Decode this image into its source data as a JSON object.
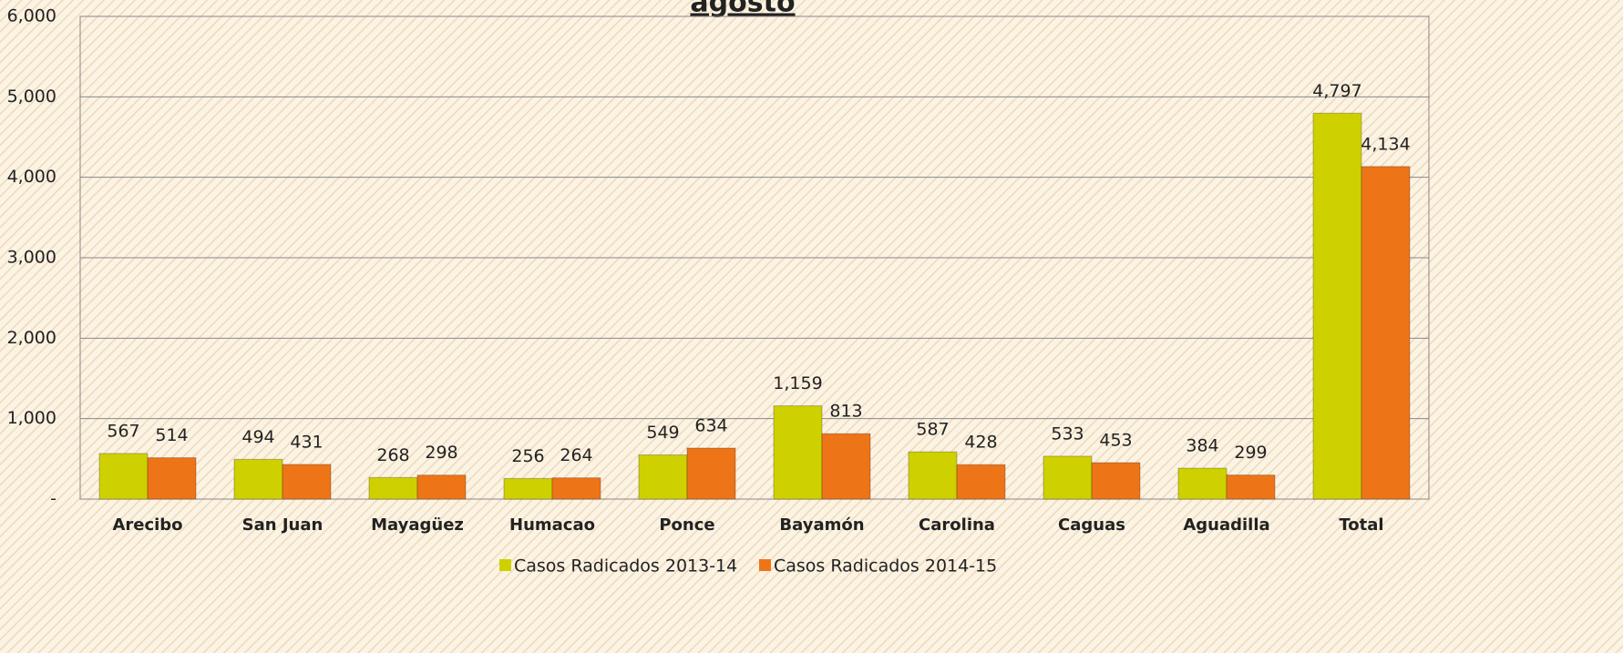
{
  "chart_data": {
    "type": "bar",
    "title": "agosto",
    "categories": [
      "Arecibo",
      "San Juan",
      "Mayagüez",
      "Humacao",
      "Ponce",
      "Bayamón",
      "Carolina",
      "Caguas",
      "Aguadilla",
      "Total"
    ],
    "series": [
      {
        "name": "Casos Radicados 2013-14",
        "color": "#cfd000",
        "values": [
          567,
          494,
          268,
          256,
          549,
          1159,
          587,
          533,
          384,
          4797
        ],
        "value_labels": [
          "567",
          "494",
          "268",
          "256",
          "549",
          "1,159",
          "587",
          "533",
          "384",
          "4,797"
        ]
      },
      {
        "name": "Casos Radicados 2014-15",
        "color": "#ee7418",
        "values": [
          514,
          431,
          298,
          264,
          634,
          813,
          428,
          453,
          299,
          4134
        ],
        "value_labels": [
          "514",
          "431",
          "298",
          "264",
          "634",
          "813",
          "428",
          "453",
          "299",
          "4,134"
        ]
      }
    ],
    "ylim": [
      0,
      6000
    ],
    "yticks": [
      {
        "value": 0,
        "label": "-"
      },
      {
        "value": 1000,
        "label": "1,000"
      },
      {
        "value": 2000,
        "label": "2,000"
      },
      {
        "value": 3000,
        "label": "3,000"
      },
      {
        "value": 4000,
        "label": "4,000"
      },
      {
        "value": 5000,
        "label": "5,000"
      },
      {
        "value": 6000,
        "label": "6,000"
      }
    ],
    "grid": true,
    "legend": "bottom"
  }
}
